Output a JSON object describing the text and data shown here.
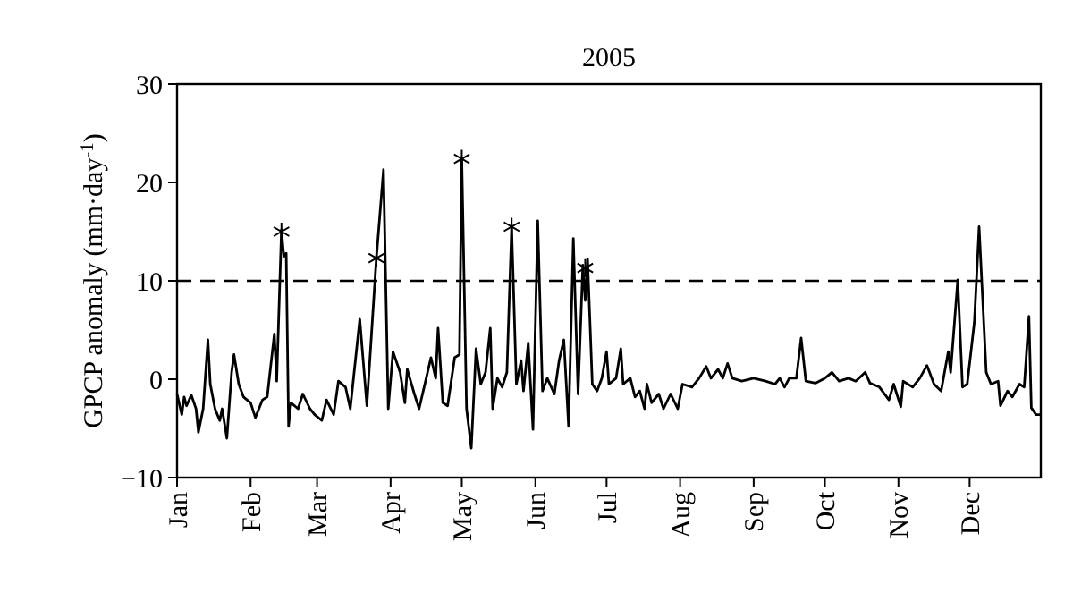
{
  "chart_data": {
    "type": "line",
    "title": "2005",
    "ylabel": "GPCP anomaly (mm·day$^{-1}$)",
    "xlim": [
      "2005-01-01",
      "2005-12-31"
    ],
    "ylim": [
      -10,
      30
    ],
    "xticks": [
      {
        "value": "2005-01-01",
        "label": "Jan"
      },
      {
        "value": "2005-02-01",
        "label": "Feb"
      },
      {
        "value": "2005-03-01",
        "label": "Mar"
      },
      {
        "value": "2005-04-01",
        "label": "Apr"
      },
      {
        "value": "2005-05-01",
        "label": "May"
      },
      {
        "value": "2005-06-01",
        "label": "Jun"
      },
      {
        "value": "2005-07-01",
        "label": "Jul"
      },
      {
        "value": "2005-08-01",
        "label": "Aug"
      },
      {
        "value": "2005-09-01",
        "label": "Sep"
      },
      {
        "value": "2005-10-01",
        "label": "Oct"
      },
      {
        "value": "2005-11-01",
        "label": "Nov"
      },
      {
        "value": "2005-12-01",
        "label": "Dec"
      }
    ],
    "yticks": [
      {
        "value": -10,
        "label": "−10"
      },
      0,
      10,
      20,
      30
    ],
    "grid": false,
    "ref_lines": [
      {
        "axis": "y",
        "value": 10,
        "line_style": "dashed",
        "color": "#000000"
      }
    ],
    "series": [
      {
        "color": "#000000",
        "marker": "none",
        "line_style": "solid",
        "x": [
          "2005-01-01",
          "2005-01-03",
          "2005-01-04",
          "2005-01-05",
          "2005-01-07",
          "2005-01-09",
          "2005-01-10",
          "2005-01-12",
          "2005-01-14",
          "2005-01-15",
          "2005-01-17",
          "2005-01-19",
          "2005-01-20",
          "2005-01-22",
          "2005-01-24",
          "2005-01-25",
          "2005-01-27",
          "2005-01-29",
          "2005-02-01",
          "2005-02-03",
          "2005-02-06",
          "2005-02-08",
          "2005-02-11",
          "2005-02-12",
          "2005-02-14",
          "2005-02-15",
          "2005-02-16",
          "2005-02-17",
          "2005-02-18",
          "2005-02-21",
          "2005-02-23",
          "2005-02-26",
          "2005-02-28",
          "2005-03-03",
          "2005-03-05",
          "2005-03-08",
          "2005-03-10",
          "2005-03-13",
          "2005-03-15",
          "2005-03-19",
          "2005-03-22",
          "2005-03-26",
          "2005-03-29",
          "2005-03-31",
          "2005-04-02",
          "2005-04-05",
          "2005-04-07",
          "2005-04-08",
          "2005-04-11",
          "2005-04-13",
          "2005-04-16",
          "2005-04-18",
          "2005-04-20",
          "2005-04-21",
          "2005-04-23",
          "2005-04-25",
          "2005-04-28",
          "2005-04-30",
          "2005-05-01",
          "2005-05-03",
          "2005-05-05",
          "2005-05-07",
          "2005-05-09",
          "2005-05-11",
          "2005-05-13",
          "2005-05-14",
          "2005-05-16",
          "2005-05-18",
          "2005-05-20",
          "2005-05-22",
          "2005-05-24",
          "2005-05-26",
          "2005-05-27",
          "2005-05-29",
          "2005-05-31",
          "2005-06-02",
          "2005-06-04",
          "2005-06-06",
          "2005-06-09",
          "2005-06-11",
          "2005-06-13",
          "2005-06-15",
          "2005-06-17",
          "2005-06-19",
          "2005-06-21",
          "2005-06-22",
          "2005-06-23",
          "2005-06-25",
          "2005-06-27",
          "2005-06-29",
          "2005-07-01",
          "2005-07-02",
          "2005-07-05",
          "2005-07-07",
          "2005-07-08",
          "2005-07-11",
          "2005-07-13",
          "2005-07-15",
          "2005-07-17",
          "2005-07-18",
          "2005-07-20",
          "2005-07-23",
          "2005-07-25",
          "2005-07-28",
          "2005-07-31",
          "2005-08-02",
          "2005-08-06",
          "2005-08-09",
          "2005-08-12",
          "2005-08-14",
          "2005-08-17",
          "2005-08-19",
          "2005-08-21",
          "2005-08-23",
          "2005-08-27",
          "2005-09-01",
          "2005-09-06",
          "2005-09-10",
          "2005-09-12",
          "2005-09-14",
          "2005-09-16",
          "2005-09-19",
          "2005-09-21",
          "2005-09-23",
          "2005-09-27",
          "2005-10-01",
          "2005-10-04",
          "2005-10-07",
          "2005-10-11",
          "2005-10-14",
          "2005-10-18",
          "2005-10-20",
          "2005-10-24",
          "2005-10-28",
          "2005-10-30",
          "2005-11-02",
          "2005-11-03",
          "2005-11-07",
          "2005-11-10",
          "2005-11-13",
          "2005-11-16",
          "2005-11-19",
          "2005-11-22",
          "2005-11-23",
          "2005-11-26",
          "2005-11-28",
          "2005-11-30",
          "2005-12-03",
          "2005-12-05",
          "2005-12-08",
          "2005-12-10",
          "2005-12-13",
          "2005-12-14",
          "2005-12-17",
          "2005-12-19",
          "2005-12-22",
          "2005-12-24",
          "2005-12-26",
          "2005-12-27",
          "2005-12-29",
          "2005-12-31"
        ],
        "values": [
          -1.5,
          -3.6,
          -1.8,
          -2.7,
          -1.6,
          -3,
          -5.4,
          -3,
          4,
          -0.5,
          -3,
          -4.2,
          -3,
          -6,
          0.7,
          2.5,
          -0.5,
          -1.8,
          -2.4,
          -3.9,
          -2.1,
          -1.8,
          4.6,
          -0.2,
          15.2,
          12.5,
          12.8,
          -4.8,
          -2.4,
          -3,
          -1.5,
          -3,
          -3.6,
          -4.2,
          -2.1,
          -3.6,
          -0.2,
          -0.8,
          -3,
          6.1,
          -2.7,
          12.3,
          21.3,
          -3,
          2.8,
          0.7,
          -2.4,
          1,
          -1.5,
          -3,
          0.1,
          2.2,
          0.1,
          5.2,
          -2.4,
          -2.7,
          2.2,
          2.5,
          22.4,
          -3,
          -7,
          3.1,
          -0.5,
          0.7,
          5.2,
          -3,
          0.1,
          -0.8,
          0.7,
          15.5,
          -0.5,
          1.9,
          -1.2,
          3.7,
          -5.1,
          16.1,
          -1.2,
          0.1,
          -1.5,
          1.9,
          4,
          -4.8,
          14.3,
          -1.5,
          11.6,
          8,
          12.2,
          -0.5,
          -1.2,
          0.1,
          2.8,
          -0.5,
          0.1,
          3.1,
          -0.5,
          0.1,
          -1.8,
          -1.2,
          -3,
          -0.5,
          -2.4,
          -1.5,
          -3,
          -1.5,
          -3,
          -0.5,
          -0.8,
          0.1,
          1.3,
          0.1,
          1,
          0.1,
          1.6,
          0.1,
          -0.2,
          0.1,
          -0.2,
          -0.5,
          0.1,
          -0.8,
          0.1,
          0.1,
          4.2,
          -0.2,
          -0.4,
          0.1,
          0.7,
          -0.2,
          0.1,
          -0.2,
          0.7,
          -0.4,
          -0.8,
          -2.1,
          -0.5,
          -2.8,
          -0.2,
          -0.8,
          0.1,
          1.4,
          -0.5,
          -1.2,
          2.8,
          0.7,
          10.1,
          -0.8,
          -0.5,
          5.8,
          15.5,
          0.7,
          -0.5,
          -0.2,
          -2.7,
          -1.2,
          -1.8,
          -0.5,
          -0.8,
          6.4,
          -2.9,
          -3.6,
          -3.6
        ]
      },
      {
        "type": "scatter",
        "color": "#000000",
        "marker": "cross",
        "x": [
          "2005-02-14",
          "2005-03-26",
          "2005-05-01",
          "2005-05-22",
          "2005-06-22"
        ],
        "values": [
          15,
          12.3,
          22.4,
          15.5,
          11.3
        ]
      }
    ]
  }
}
